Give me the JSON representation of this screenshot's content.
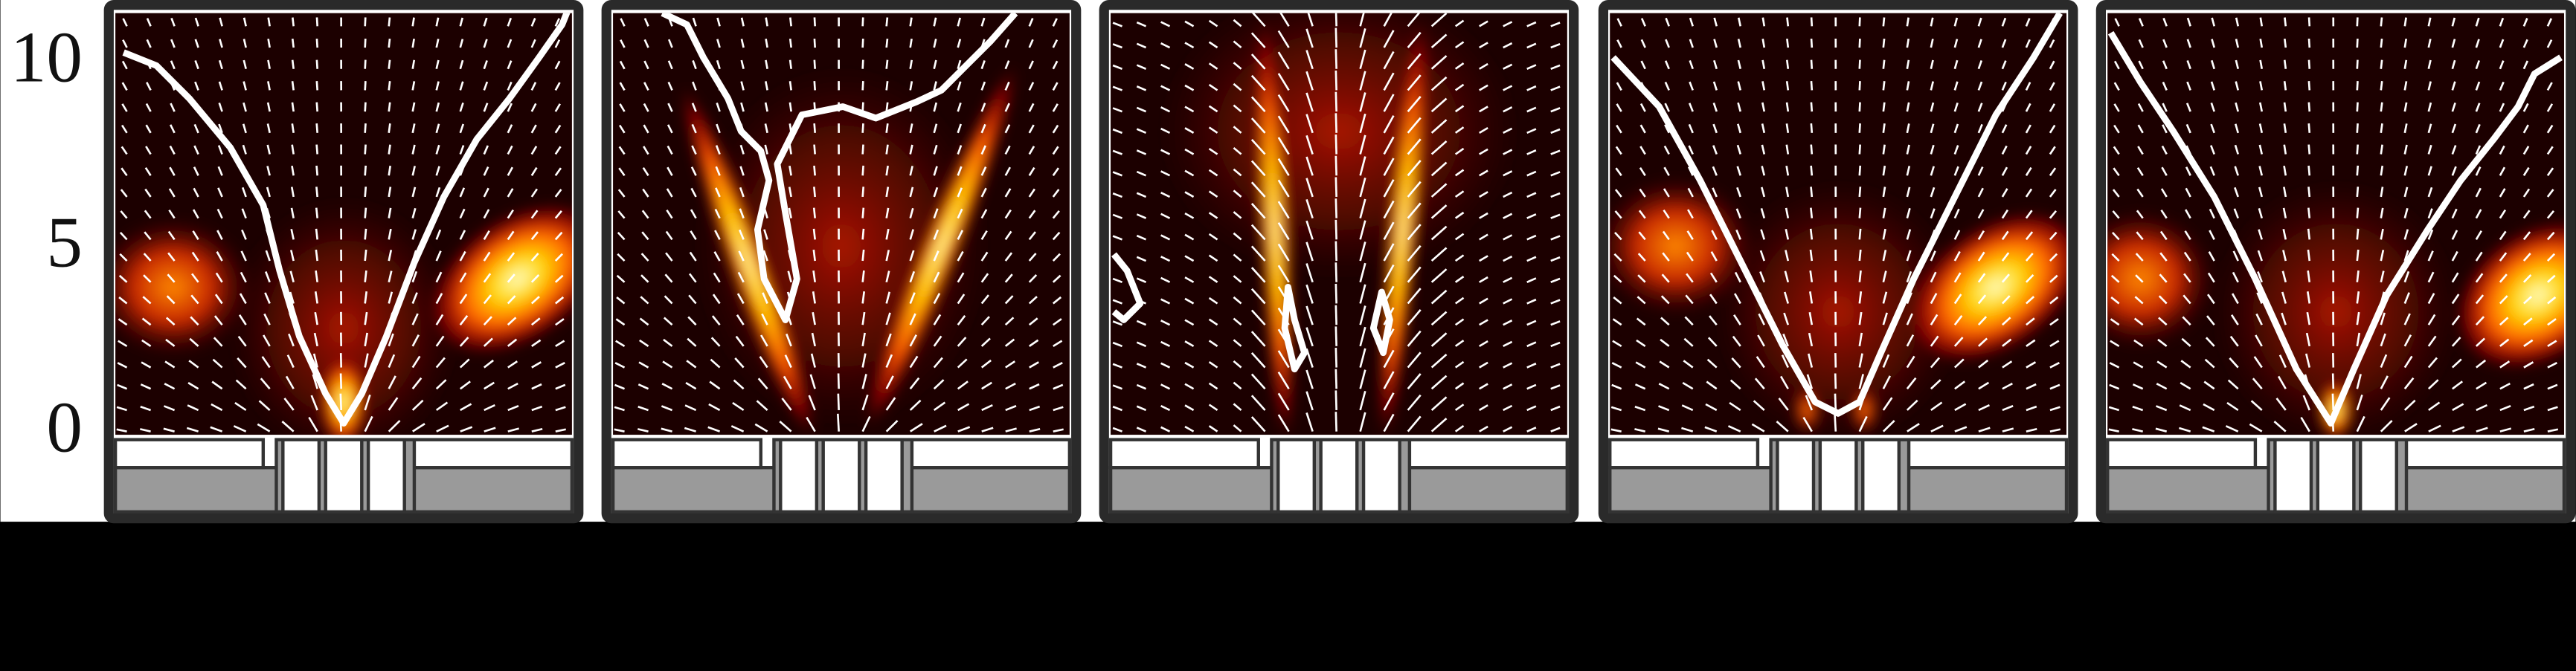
{
  "chart_data": {
    "type": "heatmap",
    "ylim": [
      0,
      11.4
    ],
    "yticks": [
      0,
      5,
      10
    ]
  }
}
